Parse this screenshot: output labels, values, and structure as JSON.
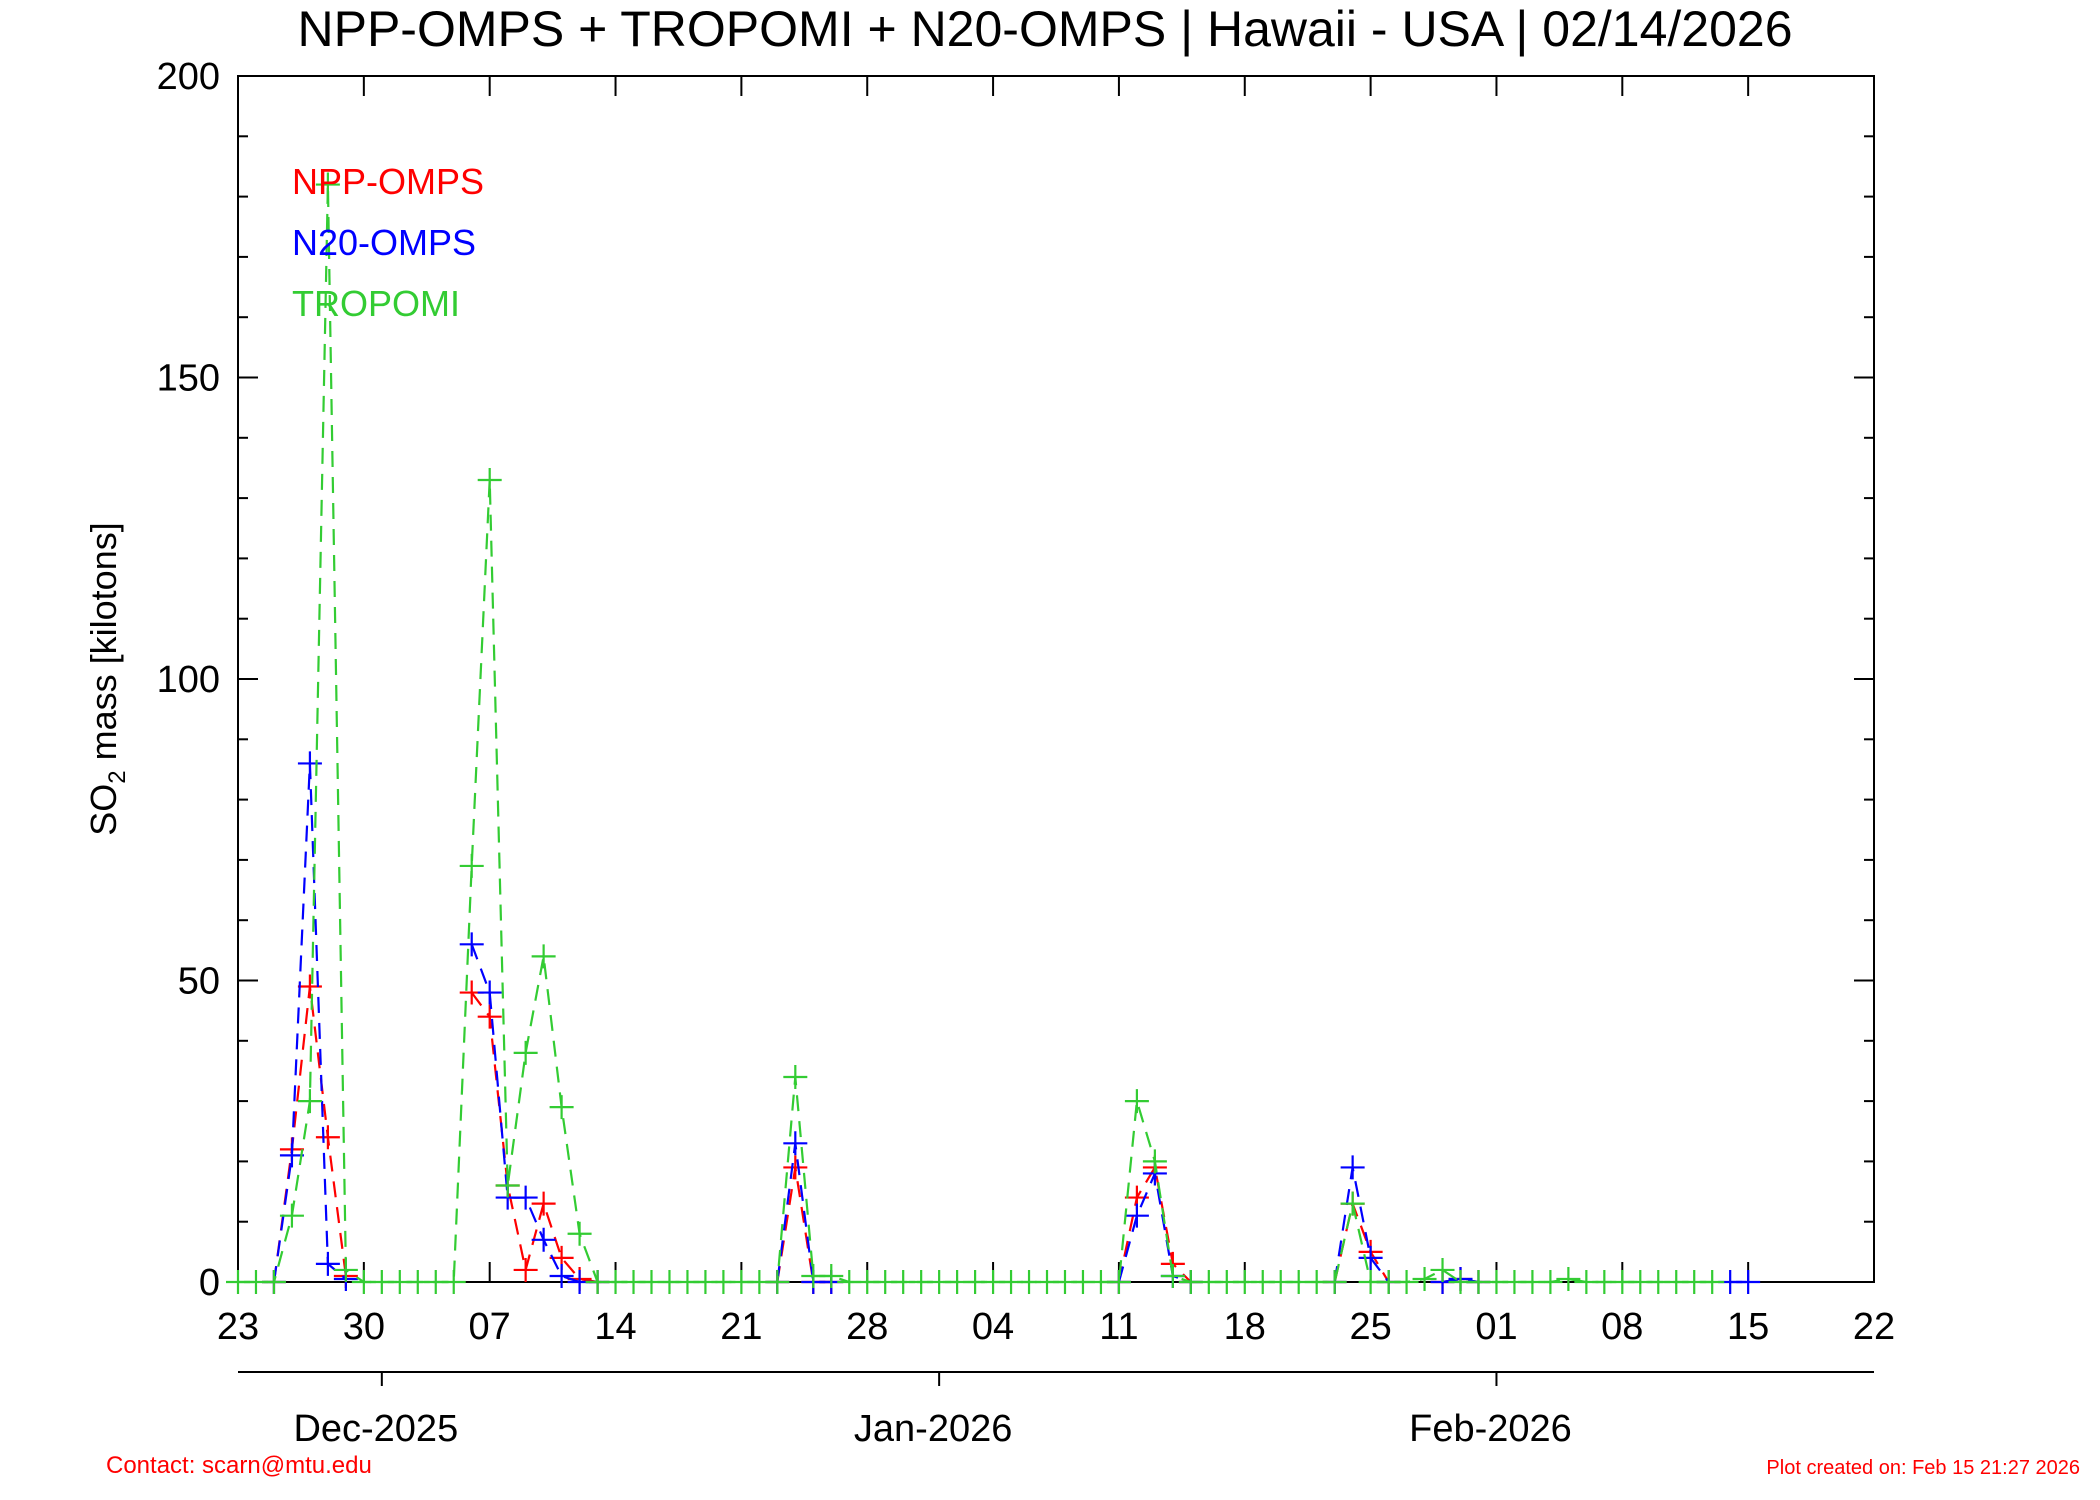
{
  "chart_data": {
    "type": "line",
    "title": "NPP-OMPS + TROPOMI + N20-OMPS | Hawaii - USA | 02/14/2026",
    "ylabel_main": "SO",
    "ylabel_sub": "2",
    "ylabel_rest": " mass [kilotons]",
    "ylim": [
      0,
      200
    ],
    "yticks": [
      0,
      50,
      100,
      150,
      200
    ],
    "xlim": [
      "2025-11-23",
      "2026-02-22"
    ],
    "xticks": [
      {
        "date": "2025-11-23",
        "label": "23"
      },
      {
        "date": "2025-11-30",
        "label": "30"
      },
      {
        "date": "2025-12-07",
        "label": "07"
      },
      {
        "date": "2025-12-14",
        "label": "14"
      },
      {
        "date": "2025-12-21",
        "label": "21"
      },
      {
        "date": "2025-12-28",
        "label": "28"
      },
      {
        "date": "2026-01-04",
        "label": "04"
      },
      {
        "date": "2026-01-11",
        "label": "11"
      },
      {
        "date": "2026-01-18",
        "label": "18"
      },
      {
        "date": "2026-01-25",
        "label": "25"
      },
      {
        "date": "2026-02-01",
        "label": "01"
      },
      {
        "date": "2026-02-08",
        "label": "08"
      },
      {
        "date": "2026-02-15",
        "label": "15"
      },
      {
        "date": "2026-02-22",
        "label": "22"
      }
    ],
    "month_labels": [
      {
        "date": "2025-12-01",
        "label": "Dec-2025"
      },
      {
        "date": "2026-01-01",
        "label": "Jan-2026"
      },
      {
        "date": "2026-02-01",
        "label": "Feb-2026"
      }
    ],
    "legend_position": "top-left",
    "grid": false,
    "series": [
      {
        "name": "NPP-OMPS",
        "color": "#ff0000",
        "points": [
          [
            "2025-11-25",
            0
          ],
          [
            "2025-11-26",
            22
          ],
          [
            "2025-11-27",
            49
          ],
          [
            "2025-11-28",
            24
          ],
          [
            "2025-11-29",
            1
          ],
          [
            "2025-12-06",
            48
          ],
          [
            "2025-12-07",
            44
          ],
          [
            "2025-12-08",
            16
          ],
          [
            "2025-12-09",
            2
          ],
          [
            "2025-12-10",
            13
          ],
          [
            "2025-12-11",
            4
          ],
          [
            "2025-12-12",
            0.5
          ],
          [
            "2025-12-13",
            0
          ],
          [
            "2025-12-23",
            0
          ],
          [
            "2025-12-24",
            19
          ],
          [
            "2025-12-25",
            0
          ],
          [
            "2025-12-26",
            0
          ],
          [
            "2026-01-11",
            0
          ],
          [
            "2026-01-12",
            14
          ],
          [
            "2026-01-13",
            19
          ],
          [
            "2026-01-14",
            3
          ],
          [
            "2026-01-15",
            0
          ],
          [
            "2026-01-23",
            0
          ],
          [
            "2026-01-24",
            13
          ],
          [
            "2026-01-25",
            5
          ],
          [
            "2026-01-26",
            0
          ],
          [
            "2026-01-29",
            0
          ],
          [
            "2026-01-30",
            0.5
          ],
          [
            "2026-01-31",
            0
          ]
        ]
      },
      {
        "name": "N20-OMPS",
        "color": "#0000ff",
        "points": [
          [
            "2025-11-25",
            0
          ],
          [
            "2025-11-26",
            21
          ],
          [
            "2025-11-27",
            86
          ],
          [
            "2025-11-28",
            3
          ],
          [
            "2025-11-29",
            0.5
          ],
          [
            "2025-12-06",
            56
          ],
          [
            "2025-12-07",
            48
          ],
          [
            "2025-12-08",
            14
          ],
          [
            "2025-12-09",
            14
          ],
          [
            "2025-12-10",
            7
          ],
          [
            "2025-12-11",
            1
          ],
          [
            "2025-12-12",
            0
          ],
          [
            "2025-12-13",
            0
          ],
          [
            "2025-12-23",
            0
          ],
          [
            "2025-12-24",
            23
          ],
          [
            "2025-12-25",
            0
          ],
          [
            "2025-12-26",
            0
          ],
          [
            "2026-01-11",
            0
          ],
          [
            "2026-01-12",
            11
          ],
          [
            "2026-01-13",
            18
          ],
          [
            "2026-01-14",
            1
          ],
          [
            "2026-01-15",
            0
          ],
          [
            "2026-01-23",
            0
          ],
          [
            "2026-01-24",
            19
          ],
          [
            "2026-01-25",
            4
          ],
          [
            "2026-01-26",
            0
          ],
          [
            "2026-01-29",
            0
          ],
          [
            "2026-01-30",
            0.5
          ],
          [
            "2026-01-31",
            0
          ],
          [
            "2026-02-14",
            0
          ],
          [
            "2026-02-15",
            0
          ]
        ]
      },
      {
        "name": "TROPOMI",
        "color": "#33cc33",
        "points": [
          [
            "2025-11-23",
            0
          ],
          [
            "2025-11-24",
            0
          ],
          [
            "2025-11-25",
            0
          ],
          [
            "2025-11-26",
            11
          ],
          [
            "2025-11-27",
            30
          ],
          [
            "2025-11-28",
            182
          ],
          [
            "2025-11-29",
            2
          ],
          [
            "2025-11-30",
            0
          ],
          [
            "2025-12-01",
            0
          ],
          [
            "2025-12-02",
            0
          ],
          [
            "2025-12-03",
            0
          ],
          [
            "2025-12-04",
            0
          ],
          [
            "2025-12-05",
            0
          ],
          [
            "2025-12-06",
            69
          ],
          [
            "2025-12-07",
            133
          ],
          [
            "2025-12-08",
            16
          ],
          [
            "2025-12-09",
            38
          ],
          [
            "2025-12-10",
            54
          ],
          [
            "2025-12-11",
            29
          ],
          [
            "2025-12-12",
            8
          ],
          [
            "2025-12-13",
            0
          ],
          [
            "2025-12-14",
            0
          ],
          [
            "2025-12-15",
            0
          ],
          [
            "2025-12-16",
            0
          ],
          [
            "2025-12-17",
            0
          ],
          [
            "2025-12-18",
            0
          ],
          [
            "2025-12-19",
            0
          ],
          [
            "2025-12-20",
            0
          ],
          [
            "2025-12-21",
            0
          ],
          [
            "2025-12-22",
            0
          ],
          [
            "2025-12-23",
            0
          ],
          [
            "2025-12-24",
            34
          ],
          [
            "2025-12-25",
            1
          ],
          [
            "2025-12-26",
            1
          ],
          [
            "2025-12-27",
            0
          ],
          [
            "2025-12-28",
            0
          ],
          [
            "2025-12-29",
            0
          ],
          [
            "2025-12-30",
            0
          ],
          [
            "2025-12-31",
            0
          ],
          [
            "2026-01-01",
            0
          ],
          [
            "2026-01-02",
            0
          ],
          [
            "2026-01-03",
            0
          ],
          [
            "2026-01-04",
            0
          ],
          [
            "2026-01-05",
            0
          ],
          [
            "2026-01-06",
            0
          ],
          [
            "2026-01-07",
            0
          ],
          [
            "2026-01-08",
            0
          ],
          [
            "2026-01-09",
            0
          ],
          [
            "2026-01-10",
            0
          ],
          [
            "2026-01-11",
            0
          ],
          [
            "2026-01-12",
            30
          ],
          [
            "2026-01-13",
            20
          ],
          [
            "2026-01-14",
            1
          ],
          [
            "2026-01-15",
            0
          ],
          [
            "2026-01-16",
            0
          ],
          [
            "2026-01-17",
            0
          ],
          [
            "2026-01-18",
            0
          ],
          [
            "2026-01-19",
            0
          ],
          [
            "2026-01-20",
            0
          ],
          [
            "2026-01-21",
            0
          ],
          [
            "2026-01-22",
            0
          ],
          [
            "2026-01-23",
            0
          ],
          [
            "2026-01-24",
            13
          ],
          [
            "2026-01-25",
            0
          ],
          [
            "2026-01-26",
            0
          ],
          [
            "2026-01-27",
            0
          ],
          [
            "2026-01-28",
            0.5
          ],
          [
            "2026-01-29",
            2
          ],
          [
            "2026-01-30",
            0
          ],
          [
            "2026-01-31",
            0
          ],
          [
            "2026-02-01",
            0
          ],
          [
            "2026-02-02",
            0
          ],
          [
            "2026-02-03",
            0
          ],
          [
            "2026-02-04",
            0
          ],
          [
            "2026-02-05",
            0.5
          ],
          [
            "2026-02-06",
            0
          ],
          [
            "2026-02-07",
            0
          ],
          [
            "2026-02-08",
            0
          ],
          [
            "2026-02-09",
            0
          ],
          [
            "2026-02-10",
            0
          ],
          [
            "2026-02-11",
            0
          ],
          [
            "2026-02-12",
            0
          ],
          [
            "2026-02-13",
            0
          ]
        ]
      }
    ]
  },
  "footer": {
    "contact": "Contact: scarn@mtu.edu",
    "created": "Plot created on: Feb 15 21:27 2026"
  }
}
